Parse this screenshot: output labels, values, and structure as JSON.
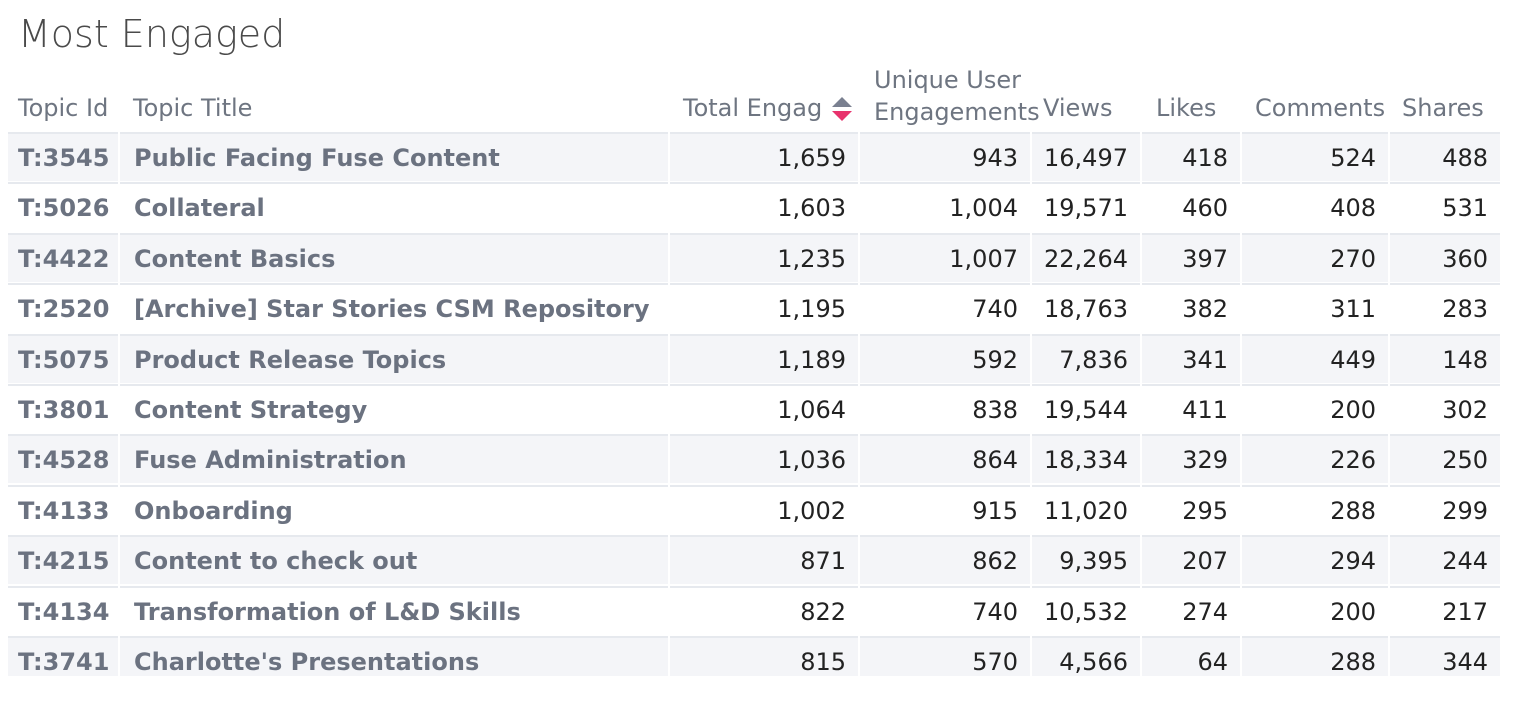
{
  "header": {
    "title": "Most Engaged"
  },
  "table": {
    "columns": [
      "Topic Id",
      "Topic Title",
      "Total Engag",
      "Unique User Engagements",
      "Views",
      "Likes",
      "Comments",
      "Shares"
    ],
    "rows": [
      [
        "T:3545",
        "Public Facing Fuse Content",
        "1,659",
        "943",
        "16,497",
        "418",
        "524",
        "488"
      ],
      [
        "T:5026",
        "Collateral",
        "1,603",
        "1,004",
        "19,571",
        "460",
        "408",
        "531"
      ],
      [
        "T:4422",
        "Content Basics",
        "1,235",
        "1,007",
        "22,264",
        "397",
        "270",
        "360"
      ],
      [
        "T:2520",
        "[Archive] Star Stories CSM Repository",
        "1,195",
        "740",
        "18,763",
        "382",
        "311",
        "283"
      ],
      [
        "T:5075",
        "Product Release Topics",
        "1,189",
        "592",
        "7,836",
        "341",
        "449",
        "148"
      ],
      [
        "T:3801",
        "Content Strategy",
        "1,064",
        "838",
        "19,544",
        "411",
        "200",
        "302"
      ],
      [
        "T:4528",
        "Fuse Administration",
        "1,036",
        "864",
        "18,334",
        "329",
        "226",
        "250"
      ],
      [
        "T:4133",
        "Onboarding",
        "1,002",
        "915",
        "11,020",
        "295",
        "288",
        "299"
      ],
      [
        "T:4215",
        "Content to check out",
        "871",
        "862",
        "9,395",
        "207",
        "294",
        "244"
      ],
      [
        "T:4134",
        "Transformation of L&D Skills",
        "822",
        "740",
        "10,532",
        "274",
        "200",
        "217"
      ],
      [
        "T:3741",
        "Charlotte's Presentations",
        "815",
        "570",
        "4,566",
        "64",
        "288",
        "344"
      ]
    ]
  }
}
